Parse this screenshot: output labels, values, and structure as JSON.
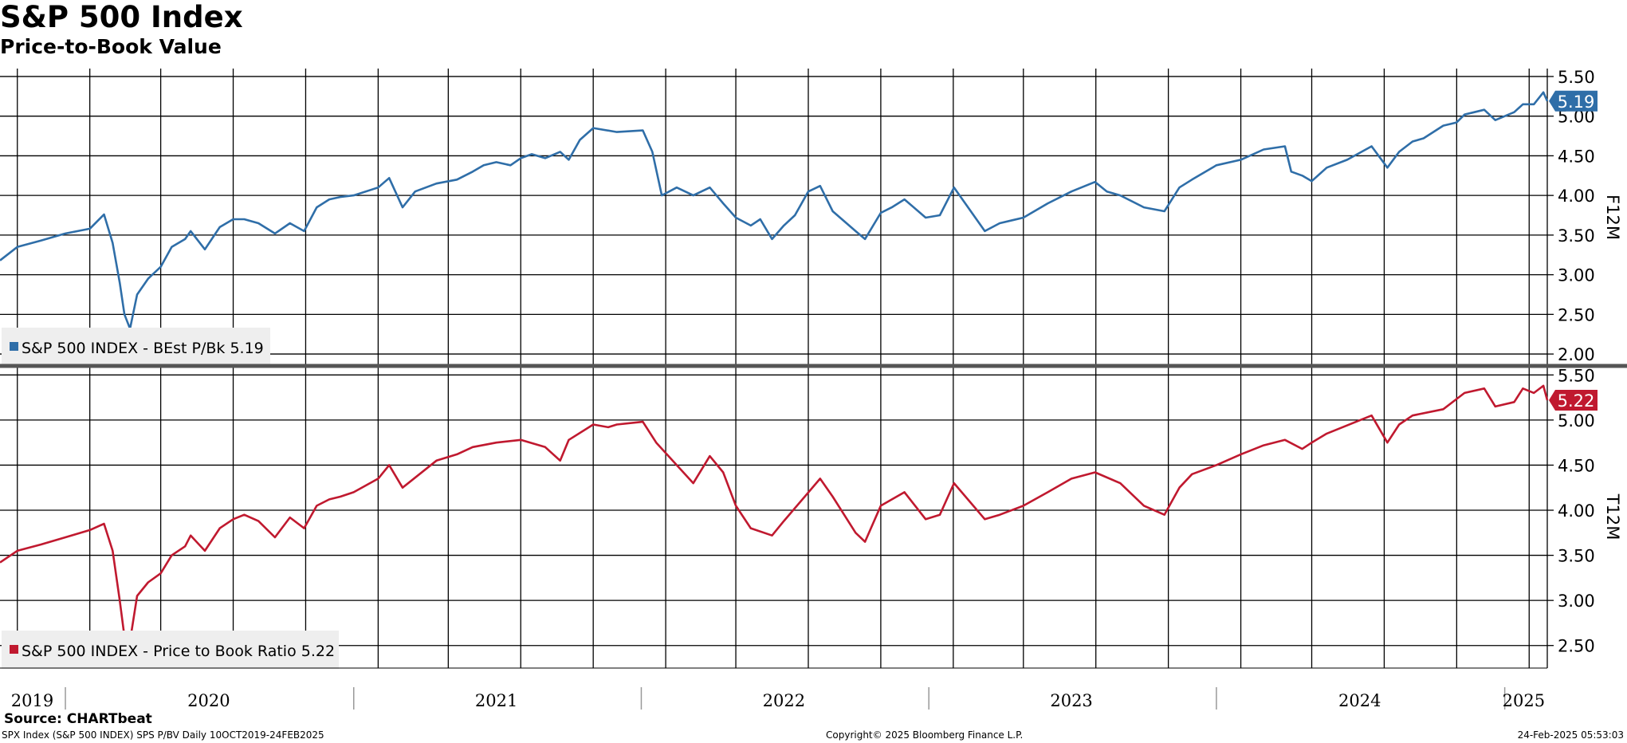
{
  "header": {
    "title": "S&P 500 Index",
    "subtitle": "Price-to-Book Value"
  },
  "footer": {
    "source": "Source: CHARTbeat",
    "ticker_info": "SPX Index (S&P 500 INDEX) SPS P/BV  Daily 10OCT2019-24FEB2025",
    "copyright": "Copyright© 2025 Bloomberg Finance L.P.",
    "timestamp": "24-Feb-2025 05:53:03"
  },
  "colors": {
    "blue": "#2f6ea8",
    "red": "#c0192f",
    "grid": "#000000",
    "legend_bg": "#eeeeee"
  },
  "chart_data": [
    {
      "type": "line",
      "panel": "top",
      "axis_title": "F12M",
      "ylim": [
        1.85,
        5.6
      ],
      "yticks": [
        2.0,
        2.5,
        3.0,
        3.5,
        4.0,
        4.5,
        5.0,
        5.5
      ],
      "ytick_labels": [
        "2.00",
        "2.50",
        "3.00",
        "3.50",
        "4.00",
        "4.50",
        "5.00",
        "5.50"
      ],
      "last_value_label": "5.19",
      "series": [
        {
          "name": "S&P 500 INDEX - BEst P/Bk 5.19",
          "color": "#2f6ea8",
          "x": [
            "2019-10-10",
            "2019-11-01",
            "2019-12-01",
            "2020-01-01",
            "2020-02-01",
            "2020-02-19",
            "2020-03-01",
            "2020-03-10",
            "2020-03-16",
            "2020-03-23",
            "2020-04-01",
            "2020-04-15",
            "2020-05-01",
            "2020-05-15",
            "2020-06-01",
            "2020-06-08",
            "2020-06-26",
            "2020-07-15",
            "2020-08-01",
            "2020-08-15",
            "2020-09-02",
            "2020-09-23",
            "2020-10-12",
            "2020-10-30",
            "2020-11-15",
            "2020-12-01",
            "2020-12-15",
            "2021-01-01",
            "2021-02-01",
            "2021-02-15",
            "2021-03-04",
            "2021-03-20",
            "2021-04-16",
            "2021-05-12",
            "2021-06-01",
            "2021-06-15",
            "2021-07-01",
            "2021-07-19",
            "2021-08-01",
            "2021-08-15",
            "2021-09-01",
            "2021-09-20",
            "2021-10-01",
            "2021-10-15",
            "2021-11-01",
            "2021-12-01",
            "2022-01-03",
            "2022-01-15",
            "2022-01-27",
            "2022-02-15",
            "2022-03-08",
            "2022-03-29",
            "2022-04-15",
            "2022-05-01",
            "2022-05-20",
            "2022-06-01",
            "2022-06-16",
            "2022-07-01",
            "2022-07-15",
            "2022-08-01",
            "2022-08-16",
            "2022-09-01",
            "2022-09-30",
            "2022-10-12",
            "2022-11-01",
            "2022-11-15",
            "2022-12-01",
            "2022-12-28",
            "2023-01-15",
            "2023-02-02",
            "2023-03-13",
            "2023-04-01",
            "2023-05-01",
            "2023-06-01",
            "2023-07-01",
            "2023-07-31",
            "2023-08-15",
            "2023-09-01",
            "2023-10-01",
            "2023-10-27",
            "2023-11-15",
            "2023-12-01",
            "2024-01-01",
            "2024-02-01",
            "2024-03-01",
            "2024-03-28",
            "2024-04-05",
            "2024-04-19",
            "2024-05-01",
            "2024-05-20",
            "2024-06-15",
            "2024-07-16",
            "2024-08-05",
            "2024-08-20",
            "2024-09-06",
            "2024-09-20",
            "2024-10-15",
            "2024-11-01",
            "2024-11-11",
            "2024-12-06",
            "2024-12-20",
            "2025-01-13",
            "2025-01-24",
            "2025-02-07",
            "2025-02-19",
            "2025-02-24"
          ],
          "values": [
            3.18,
            3.35,
            3.43,
            3.52,
            3.58,
            3.76,
            3.4,
            2.9,
            2.5,
            2.32,
            2.75,
            2.95,
            3.1,
            3.35,
            3.45,
            3.55,
            3.32,
            3.6,
            3.7,
            3.7,
            3.65,
            3.52,
            3.65,
            3.55,
            3.85,
            3.95,
            3.98,
            4.0,
            4.1,
            4.22,
            3.85,
            4.05,
            4.15,
            4.2,
            4.3,
            4.38,
            4.42,
            4.38,
            4.47,
            4.52,
            4.47,
            4.55,
            4.45,
            4.7,
            4.85,
            4.8,
            4.82,
            4.55,
            4.0,
            4.1,
            4.0,
            4.1,
            3.9,
            3.72,
            3.62,
            3.7,
            3.45,
            3.62,
            3.75,
            4.05,
            4.12,
            3.8,
            3.55,
            3.45,
            3.78,
            3.85,
            3.95,
            3.72,
            3.75,
            4.1,
            3.55,
            3.65,
            3.72,
            3.9,
            4.05,
            4.17,
            4.05,
            4.0,
            3.85,
            3.8,
            4.1,
            4.2,
            4.38,
            4.45,
            4.58,
            4.62,
            4.3,
            4.25,
            4.18,
            4.35,
            4.45,
            4.62,
            4.35,
            4.55,
            4.68,
            4.72,
            4.88,
            4.92,
            5.02,
            5.08,
            4.95,
            5.05,
            5.15,
            5.15,
            5.3,
            5.19
          ]
        }
      ]
    },
    {
      "type": "line",
      "panel": "bottom",
      "axis_title": "T12M",
      "ylim": [
        2.25,
        5.6
      ],
      "yticks": [
        2.5,
        3.0,
        3.5,
        4.0,
        4.5,
        5.0,
        5.5
      ],
      "ytick_labels": [
        "2.50",
        "3.00",
        "3.50",
        "4.00",
        "4.50",
        "5.00",
        "5.50"
      ],
      "last_value_label": "5.22",
      "series": [
        {
          "name": "S&P 500 INDEX - Price to Book Ratio 5.22",
          "color": "#c0192f",
          "x": [
            "2019-10-10",
            "2019-11-01",
            "2019-12-01",
            "2020-01-01",
            "2020-02-01",
            "2020-02-19",
            "2020-03-01",
            "2020-03-10",
            "2020-03-16",
            "2020-03-23",
            "2020-04-01",
            "2020-04-15",
            "2020-05-01",
            "2020-05-15",
            "2020-06-01",
            "2020-06-08",
            "2020-06-26",
            "2020-07-15",
            "2020-08-01",
            "2020-08-15",
            "2020-09-02",
            "2020-09-23",
            "2020-10-12",
            "2020-10-30",
            "2020-11-15",
            "2020-12-01",
            "2020-12-15",
            "2021-01-01",
            "2021-02-01",
            "2021-02-15",
            "2021-03-04",
            "2021-04-16",
            "2021-05-12",
            "2021-06-01",
            "2021-07-01",
            "2021-08-01",
            "2021-09-01",
            "2021-09-20",
            "2021-10-01",
            "2021-11-01",
            "2021-11-20",
            "2021-12-01",
            "2022-01-03",
            "2022-01-20",
            "2022-02-15",
            "2022-03-08",
            "2022-03-29",
            "2022-04-15",
            "2022-05-01",
            "2022-05-20",
            "2022-06-16",
            "2022-07-01",
            "2022-08-16",
            "2022-09-01",
            "2022-09-30",
            "2022-10-12",
            "2022-11-01",
            "2022-12-01",
            "2022-12-28",
            "2023-01-15",
            "2023-02-02",
            "2023-03-13",
            "2023-04-01",
            "2023-05-01",
            "2023-06-01",
            "2023-07-01",
            "2023-07-31",
            "2023-09-01",
            "2023-10-01",
            "2023-10-27",
            "2023-11-15",
            "2023-12-01",
            "2024-01-01",
            "2024-02-01",
            "2024-03-01",
            "2024-03-28",
            "2024-04-19",
            "2024-05-01",
            "2024-05-20",
            "2024-07-16",
            "2024-08-05",
            "2024-08-20",
            "2024-09-06",
            "2024-10-15",
            "2024-11-11",
            "2024-12-06",
            "2024-12-20",
            "2025-01-13",
            "2025-01-24",
            "2025-02-07",
            "2025-02-19",
            "2025-02-24"
          ],
          "values": [
            3.42,
            3.55,
            3.62,
            3.7,
            3.78,
            3.85,
            3.55,
            3.0,
            2.6,
            2.55,
            3.05,
            3.2,
            3.3,
            3.5,
            3.6,
            3.72,
            3.55,
            3.8,
            3.9,
            3.95,
            3.88,
            3.7,
            3.92,
            3.8,
            4.05,
            4.12,
            4.15,
            4.2,
            4.35,
            4.5,
            4.25,
            4.55,
            4.62,
            4.7,
            4.75,
            4.78,
            4.7,
            4.55,
            4.78,
            4.95,
            4.92,
            4.95,
            4.98,
            4.75,
            4.5,
            4.3,
            4.6,
            4.42,
            4.05,
            3.8,
            3.72,
            3.88,
            4.35,
            4.15,
            3.75,
            3.65,
            4.05,
            4.2,
            3.9,
            3.95,
            4.3,
            3.9,
            3.95,
            4.05,
            4.2,
            4.35,
            4.42,
            4.3,
            4.05,
            3.95,
            4.25,
            4.4,
            4.5,
            4.62,
            4.72,
            4.78,
            4.68,
            4.75,
            4.85,
            5.05,
            4.75,
            4.95,
            5.05,
            5.12,
            5.3,
            5.35,
            5.15,
            5.2,
            5.35,
            5.3,
            5.38,
            5.22
          ]
        }
      ]
    }
  ],
  "x_axis": {
    "min_date": "2019-10-10",
    "max_date": "2025-02-24",
    "year_labels": [
      {
        "label": "2019",
        "date": "2019-11-20"
      },
      {
        "label": "2020",
        "date": "2020-07-01"
      },
      {
        "label": "2021",
        "date": "2021-07-01"
      },
      {
        "label": "2022",
        "date": "2022-07-01"
      },
      {
        "label": "2023",
        "date": "2023-07-01"
      },
      {
        "label": "2024",
        "date": "2024-07-01"
      },
      {
        "label": "2025",
        "date": "2025-01-25"
      }
    ],
    "year_dividers": [
      "2020-01-01",
      "2021-01-01",
      "2022-01-01",
      "2023-01-01",
      "2024-01-01",
      "2025-01-01"
    ],
    "gridlines": [
      "2019-11-01",
      "2020-02-01",
      "2020-05-01",
      "2020-08-01",
      "2020-11-01",
      "2021-02-01",
      "2021-05-01",
      "2021-08-01",
      "2021-11-01",
      "2022-02-01",
      "2022-05-01",
      "2022-08-01",
      "2022-11-01",
      "2023-02-01",
      "2023-05-01",
      "2023-08-01",
      "2023-11-01",
      "2024-02-01",
      "2024-05-01",
      "2024-08-01",
      "2024-11-01",
      "2025-02-01"
    ]
  }
}
